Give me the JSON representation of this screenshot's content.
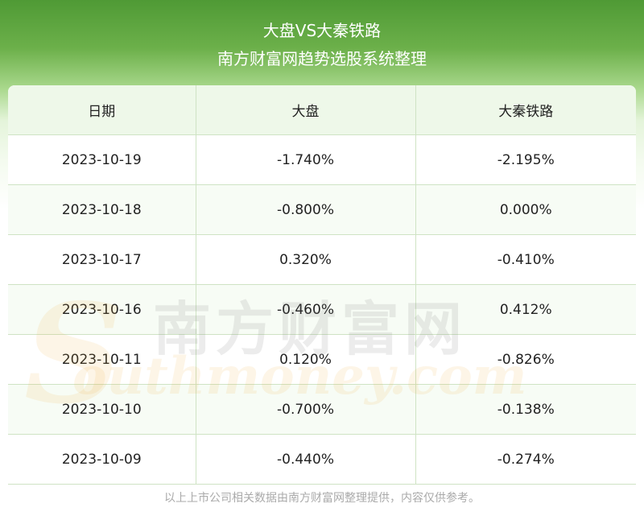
{
  "header": {
    "title": "大盘VS大秦铁路",
    "subtitle": "南方财富网趋势选股系统整理"
  },
  "table": {
    "columns": [
      "日期",
      "大盘",
      "大秦铁路"
    ],
    "rows": [
      [
        "2023-10-19",
        "-1.740%",
        "-2.195%"
      ],
      [
        "2023-10-18",
        "-0.800%",
        "0.000%"
      ],
      [
        "2023-10-17",
        "0.320%",
        "-0.410%"
      ],
      [
        "2023-10-16",
        "-0.460%",
        "0.412%"
      ],
      [
        "2023-10-11",
        "0.120%",
        "-0.826%"
      ],
      [
        "2023-10-10",
        "-0.700%",
        "-0.138%"
      ],
      [
        "2023-10-09",
        "-0.440%",
        "-0.274%"
      ]
    ]
  },
  "watermark": {
    "cn": "南方财富网",
    "en": "outhmoney.com"
  },
  "footer": "以上上市公司相关数据由南方财富网整理提供，内容仅供参考。"
}
